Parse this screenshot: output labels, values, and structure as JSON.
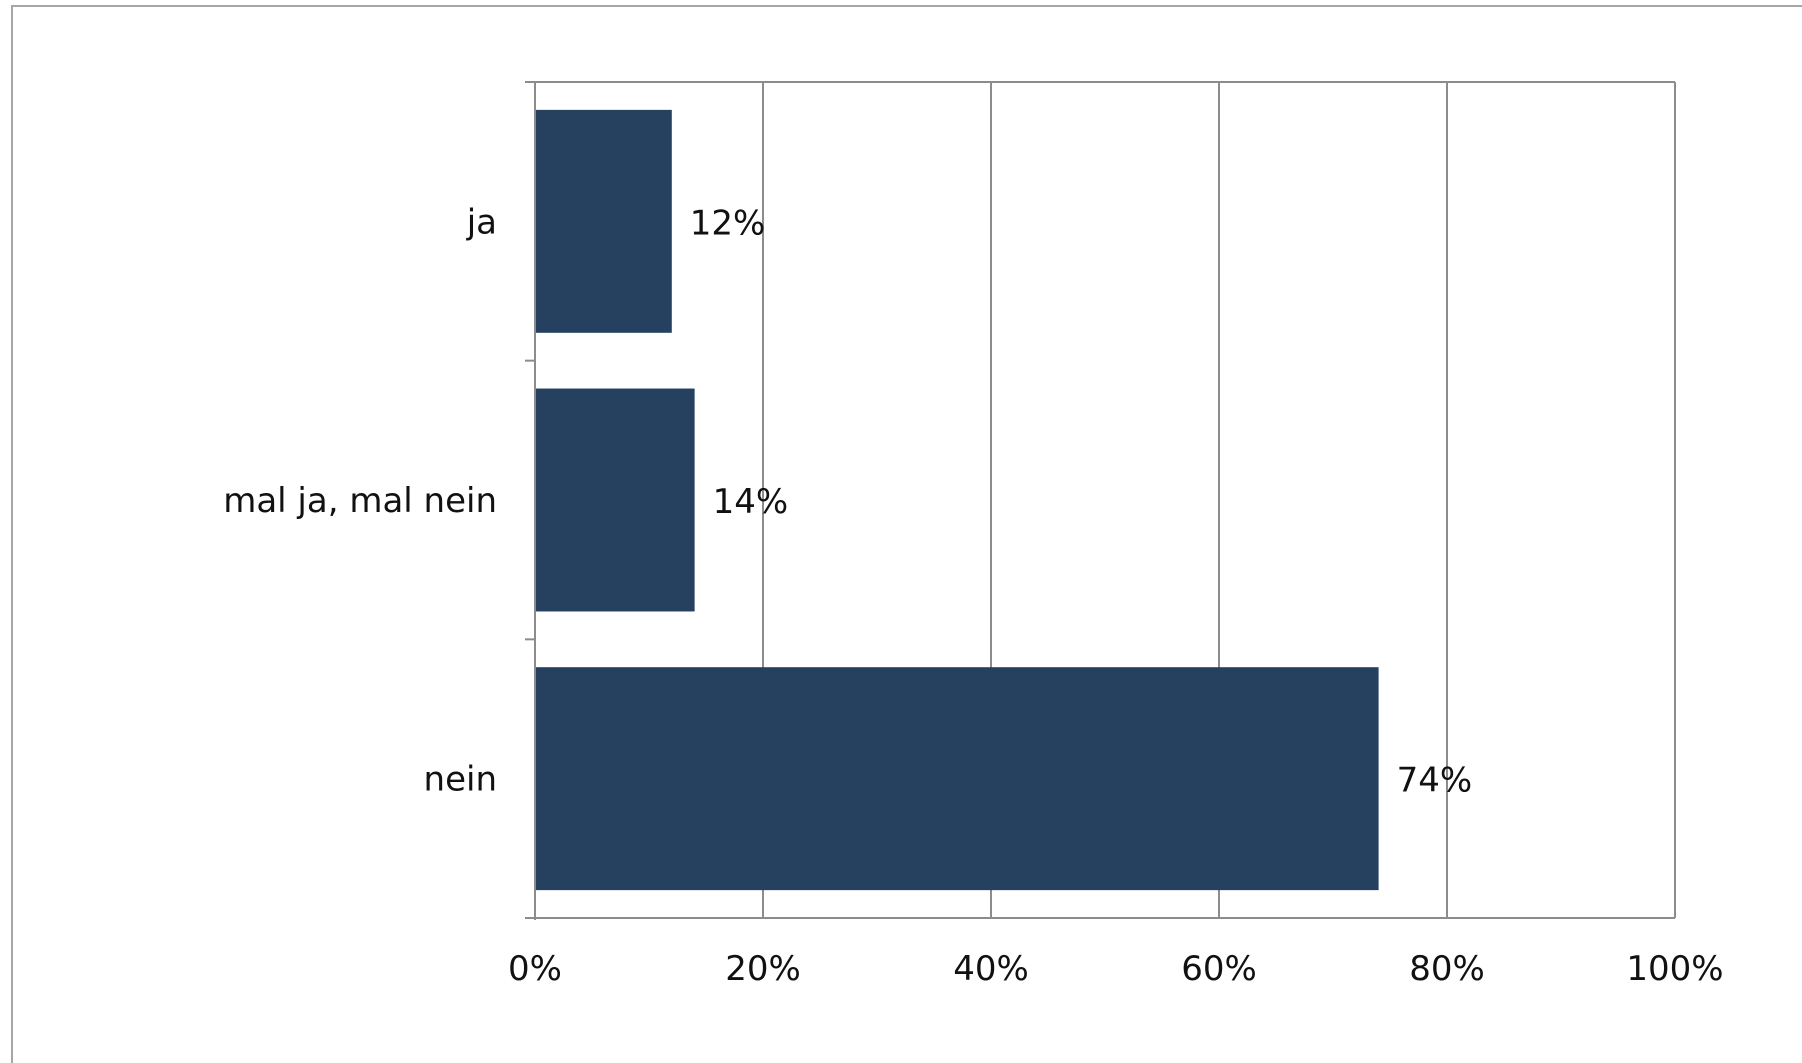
{
  "chart_data": {
    "type": "bar",
    "orientation": "horizontal",
    "categories": [
      "ja",
      "mal ja, mal nein",
      "nein"
    ],
    "values": [
      12,
      14,
      74
    ],
    "data_labels": [
      "12%",
      "14%",
      "74%"
    ],
    "x_tick_labels": [
      "0%",
      "20%",
      "40%",
      "60%",
      "80%",
      "100%"
    ],
    "x_ticks": [
      0,
      20,
      40,
      60,
      80,
      100
    ],
    "xlim": [
      0,
      100
    ],
    "title": "",
    "xlabel": "",
    "ylabel": "",
    "grid": true,
    "legend": "none",
    "bar_color": "#264060",
    "grid_color": "#8c8c8c"
  }
}
